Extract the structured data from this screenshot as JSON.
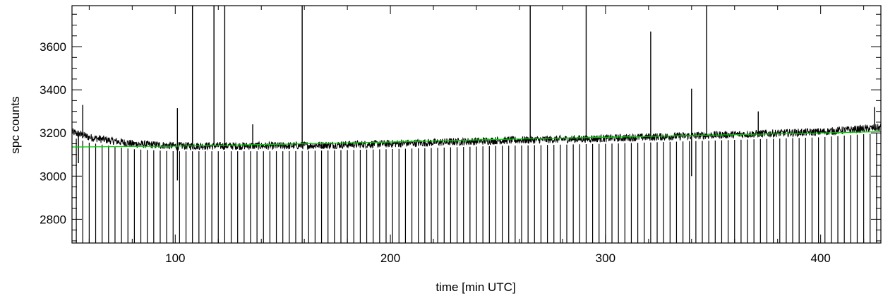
{
  "chart_data": {
    "type": "line",
    "title": "",
    "xlabel": "time [min UTC]",
    "ylabel": "spc counts",
    "xlim": [
      52,
      428
    ],
    "ylim": [
      2690,
      3790
    ],
    "x_ticks": [
      100,
      200,
      300,
      400
    ],
    "y_ticks": [
      2800,
      3000,
      3200,
      3400,
      3600
    ],
    "x_tick_labels": [
      "100",
      "200",
      "300",
      "400"
    ],
    "y_tick_labels": [
      "2800",
      "3000",
      "3200",
      "3400",
      "3600"
    ],
    "grid": false,
    "legend": "none",
    "series": [
      {
        "color": "#000000",
        "baseline_points": [
          [
            52,
            3205
          ],
          [
            60,
            3180
          ],
          [
            80,
            3150
          ],
          [
            100,
            3140
          ],
          [
            150,
            3140
          ],
          [
            200,
            3150
          ],
          [
            250,
            3165
          ],
          [
            300,
            3175
          ],
          [
            350,
            3190
          ],
          [
            400,
            3205
          ],
          [
            428,
            3225
          ]
        ],
        "noise_amplitude": 18,
        "periodic_dropouts": {
          "interval_min": 3,
          "start": 54,
          "end": 428,
          "min_value": 2690
        },
        "spikes": [
          {
            "x": 57,
            "y": 3330
          },
          {
            "x": 101,
            "y": 3315
          },
          {
            "x": 108,
            "y": 3790
          },
          {
            "x": 118,
            "y": 3790
          },
          {
            "x": 123,
            "y": 3790
          },
          {
            "x": 136,
            "y": 3240
          },
          {
            "x": 159,
            "y": 3790
          },
          {
            "x": 265,
            "y": 3790
          },
          {
            "x": 291,
            "y": 3790
          },
          {
            "x": 321,
            "y": 3670
          },
          {
            "x": 340,
            "y": 3405
          },
          {
            "x": 347,
            "y": 3790
          },
          {
            "x": 371,
            "y": 3300
          },
          {
            "x": 425,
            "y": 3320
          }
        ],
        "dips": [
          {
            "x": 55,
            "y": 3060
          },
          {
            "x": 101,
            "y": 2980
          },
          {
            "x": 340,
            "y": 3000
          }
        ]
      },
      {
        "color": "#00cc00",
        "points": [
          [
            52,
            3135
          ],
          [
            100,
            3139
          ],
          [
            150,
            3148
          ],
          [
            200,
            3158
          ],
          [
            250,
            3170
          ],
          [
            300,
            3180
          ],
          [
            350,
            3190
          ],
          [
            400,
            3200
          ],
          [
            428,
            3206
          ]
        ]
      }
    ]
  }
}
